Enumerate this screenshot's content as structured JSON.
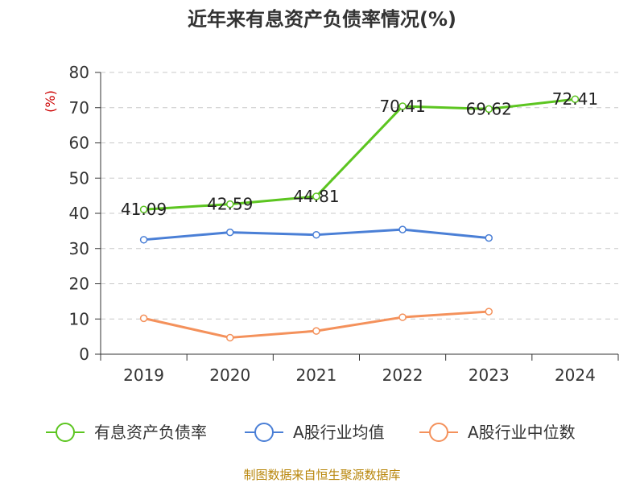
{
  "chart_data": {
    "type": "line",
    "title": "近年来有息资产负债率情况(%)",
    "ylabel": "(%)",
    "xlabel": "",
    "categories": [
      "2019",
      "2020",
      "2021",
      "2022",
      "2023",
      "2024"
    ],
    "ylim": [
      0,
      80
    ],
    "yticks": [
      0,
      10,
      20,
      30,
      40,
      50,
      60,
      70,
      80
    ],
    "grid": true,
    "legend_position": "bottom",
    "series": [
      {
        "name": "有息资产负债率",
        "color": "#5cc520",
        "values": [
          41.09,
          42.59,
          44.81,
          70.41,
          69.62,
          72.41
        ],
        "labels": [
          "41.09",
          "42.59",
          "44.81",
          "70.41",
          "69.62",
          "72.41"
        ]
      },
      {
        "name": "A股行业均值",
        "color": "#4a7fd6",
        "values": [
          32.5,
          34.6,
          33.9,
          35.4,
          33.0,
          null
        ]
      },
      {
        "name": "A股行业中位数",
        "color": "#f4915b",
        "values": [
          10.2,
          4.7,
          6.6,
          10.5,
          12.1,
          null
        ]
      }
    ]
  },
  "footer": {
    "source": "制图数据来自恒生聚源数据库"
  }
}
